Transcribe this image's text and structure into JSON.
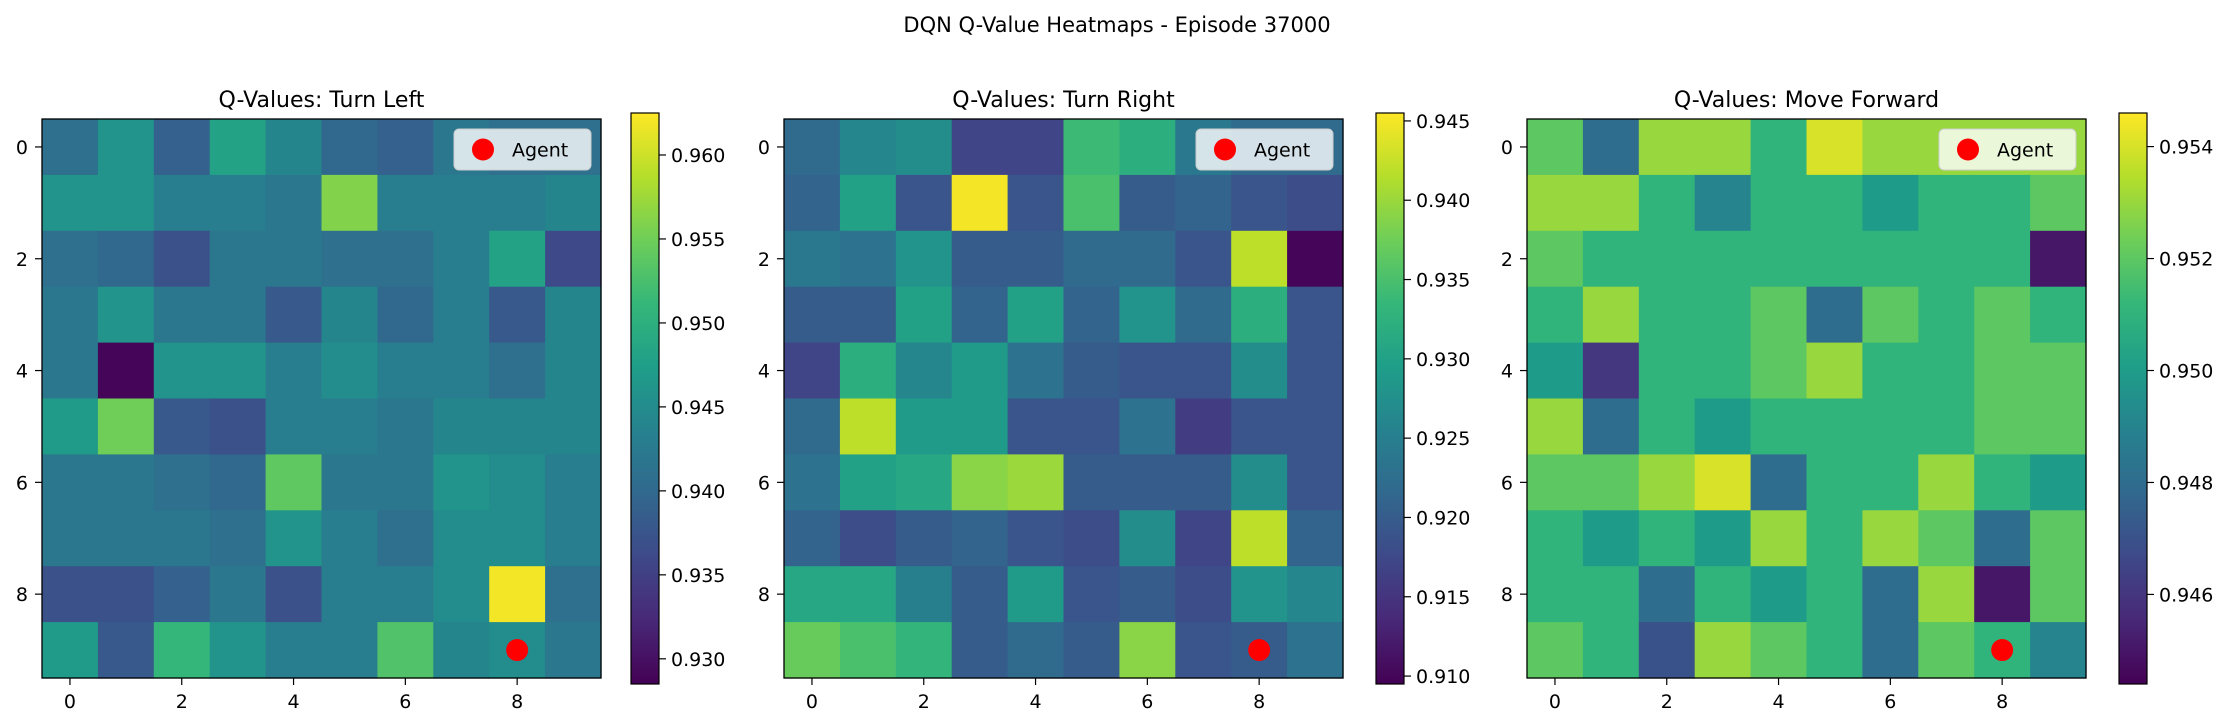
{
  "suptitle": "DQN Q-Value Heatmaps - Episode 37000",
  "colormap": [
    "#440154",
    "#482878",
    "#3e4989",
    "#31688e",
    "#26828e",
    "#1f9e89",
    "#35b779",
    "#6ece58",
    "#b5de2b",
    "#fde725"
  ],
  "chart_data": [
    {
      "type": "heatmap",
      "title": "Q-Values: Turn Left",
      "x_ticks": [
        0,
        2,
        4,
        6,
        8
      ],
      "y_ticks": [
        0,
        2,
        4,
        6,
        8
      ],
      "vmin": 0.9285,
      "vmax": 0.9625,
      "colorbar_ticks": [
        "0.930",
        "0.935",
        "0.940",
        "0.945",
        "0.950",
        "0.955",
        "0.960"
      ],
      "values": [
        [
          0.941,
          0.946,
          0.939,
          0.948,
          0.944,
          0.94,
          0.939,
          0.942,
          0.941,
          0.941
        ],
        [
          0.946,
          0.946,
          0.943,
          0.943,
          0.942,
          0.956,
          0.943,
          0.943,
          0.943,
          0.944
        ],
        [
          0.941,
          0.94,
          0.937,
          0.942,
          0.942,
          0.941,
          0.941,
          0.943,
          0.948,
          0.936
        ],
        [
          0.942,
          0.946,
          0.942,
          0.942,
          0.938,
          0.944,
          0.94,
          0.943,
          0.938,
          0.944
        ],
        [
          0.942,
          0.929,
          0.946,
          0.946,
          0.943,
          0.945,
          0.943,
          0.943,
          0.941,
          0.944
        ],
        [
          0.947,
          0.955,
          0.938,
          0.937,
          0.943,
          0.943,
          0.942,
          0.944,
          0.944,
          0.944
        ],
        [
          0.942,
          0.942,
          0.941,
          0.94,
          0.954,
          0.942,
          0.942,
          0.946,
          0.945,
          0.943
        ],
        [
          0.942,
          0.942,
          0.942,
          0.941,
          0.946,
          0.943,
          0.941,
          0.945,
          0.945,
          0.943
        ],
        [
          0.937,
          0.937,
          0.939,
          0.942,
          0.937,
          0.943,
          0.943,
          0.945,
          0.962,
          0.941
        ],
        [
          0.947,
          0.938,
          0.951,
          0.946,
          0.943,
          0.943,
          0.953,
          0.944,
          0.945,
          0.942
        ]
      ],
      "marker": {
        "label": "Agent",
        "x": 8,
        "y": 9,
        "color": "#ff0000"
      }
    },
    {
      "type": "heatmap",
      "title": "Q-Values: Turn Right",
      "x_ticks": [
        0,
        2,
        4,
        6,
        8
      ],
      "y_ticks": [
        0,
        2,
        4,
        6,
        8
      ],
      "vmin": 0.9095,
      "vmax": 0.9455,
      "colorbar_ticks": [
        "0.910",
        "0.915",
        "0.920",
        "0.925",
        "0.930",
        "0.935",
        "0.940",
        "0.945"
      ],
      "values": [
        [
          0.922,
          0.926,
          0.927,
          0.917,
          0.917,
          0.934,
          0.932,
          0.924,
          0.922,
          0.922
        ],
        [
          0.921,
          0.93,
          0.919,
          0.945,
          0.919,
          0.935,
          0.92,
          0.921,
          0.919,
          0.918
        ],
        [
          0.924,
          0.923,
          0.928,
          0.92,
          0.92,
          0.922,
          0.922,
          0.919,
          0.942,
          0.91
        ],
        [
          0.92,
          0.92,
          0.93,
          0.921,
          0.93,
          0.921,
          0.928,
          0.922,
          0.932,
          0.919
        ],
        [
          0.917,
          0.932,
          0.926,
          0.929,
          0.923,
          0.92,
          0.919,
          0.919,
          0.927,
          0.919
        ],
        [
          0.922,
          0.942,
          0.929,
          0.929,
          0.919,
          0.919,
          0.923,
          0.916,
          0.919,
          0.919
        ],
        [
          0.923,
          0.93,
          0.931,
          0.939,
          0.94,
          0.92,
          0.92,
          0.92,
          0.927,
          0.919
        ],
        [
          0.921,
          0.918,
          0.92,
          0.921,
          0.919,
          0.918,
          0.927,
          0.917,
          0.942,
          0.921
        ],
        [
          0.931,
          0.931,
          0.925,
          0.92,
          0.929,
          0.919,
          0.92,
          0.918,
          0.928,
          0.926
        ],
        [
          0.937,
          0.935,
          0.933,
          0.92,
          0.922,
          0.92,
          0.939,
          0.919,
          0.92,
          0.923
        ]
      ],
      "marker": {
        "label": "Agent",
        "x": 8,
        "y": 9,
        "color": "#ff0000"
      }
    },
    {
      "type": "heatmap",
      "title": "Q-Values: Move Forward",
      "x_ticks": [
        0,
        2,
        4,
        6,
        8
      ],
      "y_ticks": [
        0,
        2,
        4,
        6,
        8
      ],
      "vmin": 0.9444,
      "vmax": 0.9546,
      "colorbar_ticks": [
        "0.946",
        "0.948",
        "0.950",
        "0.952",
        "0.954"
      ],
      "values": [
        [
          0.952,
          0.948,
          0.953,
          0.953,
          0.951,
          0.954,
          0.953,
          0.953,
          0.953,
          0.953
        ],
        [
          0.953,
          0.953,
          0.951,
          0.949,
          0.951,
          0.951,
          0.95,
          0.951,
          0.951,
          0.952
        ],
        [
          0.952,
          0.951,
          0.951,
          0.951,
          0.951,
          0.951,
          0.951,
          0.951,
          0.951,
          0.945
        ],
        [
          0.951,
          0.953,
          0.951,
          0.951,
          0.952,
          0.948,
          0.952,
          0.951,
          0.952,
          0.951
        ],
        [
          0.95,
          0.946,
          0.951,
          0.951,
          0.952,
          0.953,
          0.951,
          0.951,
          0.952,
          0.952
        ],
        [
          0.953,
          0.948,
          0.951,
          0.95,
          0.951,
          0.951,
          0.951,
          0.951,
          0.952,
          0.952
        ],
        [
          0.952,
          0.952,
          0.953,
          0.954,
          0.948,
          0.951,
          0.951,
          0.953,
          0.951,
          0.95
        ],
        [
          0.951,
          0.95,
          0.951,
          0.95,
          0.953,
          0.951,
          0.953,
          0.952,
          0.948,
          0.952
        ],
        [
          0.951,
          0.951,
          0.948,
          0.951,
          0.95,
          0.951,
          0.948,
          0.953,
          0.945,
          0.952
        ],
        [
          0.952,
          0.951,
          0.947,
          0.953,
          0.952,
          0.951,
          0.948,
          0.952,
          0.951,
          0.949
        ]
      ],
      "marker": {
        "label": "Agent",
        "x": 8,
        "y": 9,
        "color": "#ff0000"
      }
    }
  ]
}
